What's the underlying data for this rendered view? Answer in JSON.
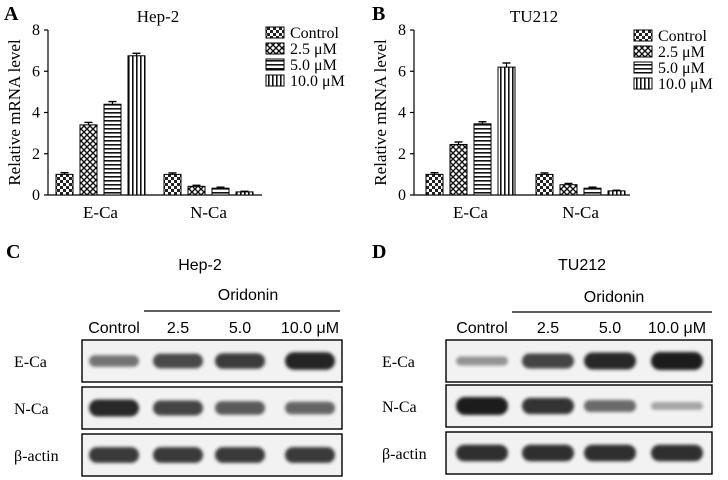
{
  "panels": {
    "A": {
      "letter": "A"
    },
    "B": {
      "letter": "B"
    },
    "C": {
      "letter": "C"
    },
    "D": {
      "letter": "D"
    }
  },
  "colors": {
    "ink": "#000000",
    "band": "#1a1a1a",
    "blot_bg": "#f2f2f2"
  },
  "chart_data": [
    {
      "type": "bar",
      "title": "Hep-2",
      "xlabel": "",
      "ylabel": "Relative mRNA level",
      "ylim": [
        0,
        8
      ],
      "yticks": [
        "0",
        "2",
        "4",
        "6",
        "8"
      ],
      "categories": [
        "E-Ca",
        "N-Ca"
      ],
      "legend_position": "top-right",
      "series": [
        {
          "name": "Control",
          "pattern": "checker",
          "values": [
            1.0,
            1.0
          ],
          "errors": [
            0.08,
            0.07
          ]
        },
        {
          "name": "2.5 μM",
          "pattern": "cross",
          "values": [
            3.4,
            0.42
          ],
          "errors": [
            0.12,
            0.05
          ]
        },
        {
          "name": "5.0 μM",
          "pattern": "hlines",
          "values": [
            4.4,
            0.33
          ],
          "errors": [
            0.13,
            0.05
          ]
        },
        {
          "name": "10.0 μM",
          "pattern": "vlines",
          "values": [
            6.75,
            0.15
          ],
          "errors": [
            0.12,
            0.03
          ]
        }
      ]
    },
    {
      "type": "bar",
      "title": "TU212",
      "xlabel": "",
      "ylabel": "Relative mRNA level",
      "ylim": [
        0,
        8
      ],
      "yticks": [
        "0",
        "2",
        "4",
        "6",
        "8"
      ],
      "categories": [
        "E-Ca",
        "N-Ca"
      ],
      "legend_position": "top-right",
      "series": [
        {
          "name": "Control",
          "pattern": "checker",
          "values": [
            1.0,
            1.0
          ],
          "errors": [
            0.08,
            0.07
          ]
        },
        {
          "name": "2.5 μM",
          "pattern": "cross",
          "values": [
            2.45,
            0.5
          ],
          "errors": [
            0.12,
            0.06
          ]
        },
        {
          "name": "5.0 μM",
          "pattern": "hlines",
          "values": [
            3.45,
            0.33
          ],
          "errors": [
            0.1,
            0.05
          ]
        },
        {
          "name": "10.0 μM",
          "pattern": "vlines",
          "values": [
            6.2,
            0.2
          ],
          "errors": [
            0.2,
            0.03
          ]
        }
      ]
    }
  ],
  "blots": [
    {
      "title": "Hep-2",
      "treatment": "Oridonin",
      "lanes": [
        "Control",
        "2.5",
        "5.0",
        "10.0 μM"
      ],
      "rows": [
        {
          "label": "E-Ca",
          "intensity": [
            0.45,
            0.72,
            0.8,
            0.95
          ]
        },
        {
          "label": "N-Ca",
          "intensity": [
            0.92,
            0.75,
            0.62,
            0.55
          ]
        },
        {
          "label": "β-actin",
          "intensity": [
            0.82,
            0.82,
            0.82,
            0.82
          ]
        }
      ]
    },
    {
      "title": "TU212",
      "treatment": "Oridonin",
      "lanes": [
        "Control",
        "2.5",
        "5.0",
        "10.0 μM"
      ],
      "rows": [
        {
          "label": "E-Ca",
          "intensity": [
            0.25,
            0.75,
            0.92,
            1.0
          ]
        },
        {
          "label": "N-Ca",
          "intensity": [
            1.0,
            0.85,
            0.5,
            0.15
          ]
        },
        {
          "label": "β-actin",
          "intensity": [
            0.88,
            0.88,
            0.88,
            0.88
          ]
        }
      ]
    }
  ]
}
